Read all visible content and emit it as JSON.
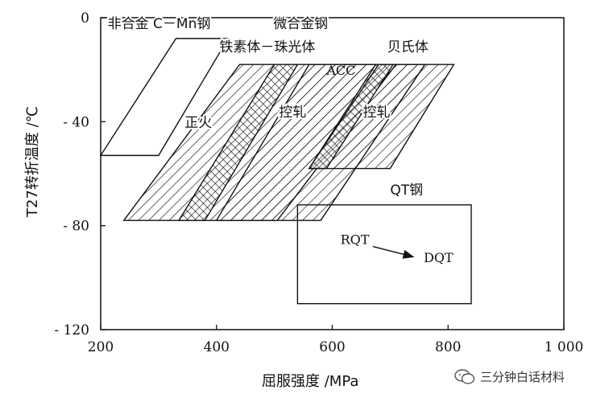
{
  "chart_data": {
    "type": "area",
    "xlabel": "屈服强度 /MPa",
    "ylabel": "T27转折温度 /℃",
    "xlim": [
      200,
      1000
    ],
    "ylim": [
      -120,
      0
    ],
    "xticks": [
      200,
      400,
      600,
      800,
      1000
    ],
    "xtick_labels": [
      "200",
      "400",
      "600",
      "800",
      "1 000"
    ],
    "yticks": [
      0,
      -40,
      -80,
      -120
    ],
    "ytick_labels": [
      "0",
      "- 40",
      "- 80",
      "- 120"
    ],
    "grid": false,
    "regions": [
      {
        "name": "非合金 C－Mn钢",
        "fill": "none",
        "polygon": [
          [
            200,
            -53
          ],
          [
            300,
            -53
          ],
          [
            420,
            -8
          ],
          [
            330,
            -8
          ]
        ]
      },
      {
        "name": "正火",
        "fill": "hatch",
        "polygon": [
          [
            240,
            -78
          ],
          [
            505,
            -78
          ],
          [
            710,
            -18
          ],
          [
            440,
            -18
          ]
        ]
      },
      {
        "name": "控轧",
        "fill": "crosshatch-band",
        "polygon": [
          [
            335,
            -78
          ],
          [
            380,
            -78
          ],
          [
            540,
            -18
          ],
          [
            500,
            -18
          ]
        ]
      },
      {
        "name": "控轧",
        "fill": "hatch",
        "polygon": [
          [
            400,
            -78
          ],
          [
            580,
            -78
          ],
          [
            760,
            -18
          ],
          [
            560,
            -18
          ]
        ]
      },
      {
        "name": "ACC",
        "fill": "crosshatch-band",
        "polygon": [
          [
            560,
            -58
          ],
          [
            590,
            -58
          ],
          [
            705,
            -18
          ],
          [
            675,
            -18
          ]
        ]
      },
      {
        "name": "控轧",
        "fill": "hatch",
        "polygon": [
          [
            560,
            -58
          ],
          [
            700,
            -58
          ],
          [
            810,
            -18
          ],
          [
            680,
            -18
          ]
        ]
      },
      {
        "name": "QT钢",
        "fill": "none",
        "polygon": [
          [
            540,
            -72
          ],
          [
            840,
            -72
          ],
          [
            840,
            -110
          ],
          [
            540,
            -110
          ]
        ]
      }
    ],
    "annotations": [
      {
        "text": "非合金 C－Mn钢",
        "x": 212,
        "y": -4
      },
      {
        "text": "微合金钢",
        "x": 498,
        "y": -4
      },
      {
        "text": "铁素体－珠光体",
        "x": 405,
        "y": -13
      },
      {
        "text": "贝氏体",
        "x": 695,
        "y": -13
      },
      {
        "text": "正火",
        "x": 345,
        "y": -42
      },
      {
        "text": "控轧",
        "x": 508,
        "y": -38
      },
      {
        "text": "控轧",
        "x": 653,
        "y": -38
      },
      {
        "text": "ACC",
        "x": 590,
        "y": -22
      },
      {
        "text": "QT钢",
        "x": 700,
        "y": -68
      },
      {
        "text": "RQT",
        "x": 614,
        "y": -87
      },
      {
        "text": "DQT",
        "x": 758,
        "y": -94
      }
    ],
    "arrow": {
      "from": [
        670,
        -88
      ],
      "to": [
        740,
        -92
      ]
    }
  },
  "colors": {
    "line": "#111111",
    "background": "#ffffff"
  },
  "watermark": {
    "icon": "wechat-icon",
    "text": "三分钟白话材料"
  }
}
